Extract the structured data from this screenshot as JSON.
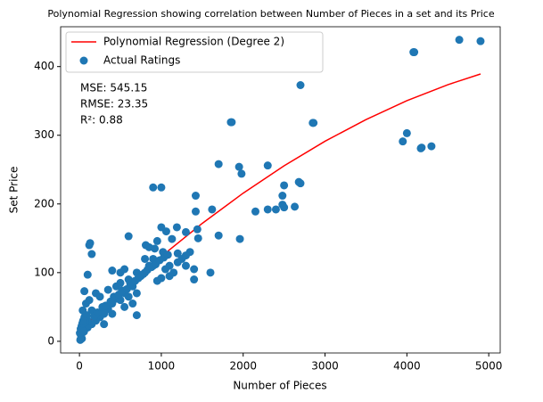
{
  "chart_data": {
    "type": "scatter",
    "title": "Polynomial Regression showing correlation between Number of Pieces in a set and its Price",
    "x_label": "Number of Pieces",
    "y_label": "Set Price",
    "annotations": [
      "MSE: 545.15",
      "RMSE: 23.35",
      "R²: 0.88"
    ],
    "legend": "upper left",
    "xlim": [
      -230,
      5140
    ],
    "ylim": [
      -17,
      458
    ],
    "xticks": [
      0,
      1000,
      2000,
      3000,
      4000,
      5000
    ],
    "yticks": [
      0,
      100,
      200,
      300,
      400
    ],
    "series": [
      {
        "name": "Polynomial Regression (Degree 2)",
        "type": "line",
        "color": "#ff0000",
        "x": [
          0,
          500,
          1000,
          1500,
          2000,
          2500,
          3000,
          3500,
          4000,
          4500,
          4900
        ],
        "values": [
          15,
          71.4,
          123.6,
          171.7,
          215.7,
          255.6,
          291.3,
          322.8,
          350.3,
          373.6,
          389.2
        ]
      },
      {
        "name": "Actual Ratings",
        "type": "scatter",
        "color": "#1f77b4",
        "x": [
          4640,
          4900,
          4080,
          4090,
          2700,
          1850,
          1860,
          2850,
          2860,
          3950,
          4000,
          4170,
          4180,
          4300,
          1700,
          1950,
          2300,
          1980,
          1000,
          900,
          2680,
          2700,
          2500,
          2480,
          2150,
          2300,
          2400,
          2480,
          2500,
          2630,
          1420,
          1420,
          1620,
          1440,
          1190,
          1300,
          1700,
          1960,
          1000,
          600,
          1060,
          810,
          850,
          920,
          950,
          1130,
          130,
          120,
          1450,
          1350,
          1300,
          1250,
          1200,
          1100,
          1050,
          1020,
          1400,
          950,
          1000,
          1100,
          900,
          150,
          100,
          60,
          300,
          700,
          400,
          500,
          550,
          600,
          700,
          800,
          750,
          650,
          550,
          450,
          400,
          350,
          300,
          250,
          200,
          150,
          100,
          50,
          20,
          30,
          10,
          60,
          40,
          80,
          120,
          200,
          250,
          350,
          500,
          600,
          450,
          550,
          650,
          700,
          300,
          400,
          150,
          100,
          500,
          800,
          850,
          900,
          1200,
          1150,
          1300,
          1400,
          1600,
          70,
          90,
          180,
          220,
          280,
          320,
          380,
          420,
          480,
          520,
          580,
          620,
          680,
          720,
          780,
          830,
          880,
          930,
          980,
          1030,
          1080,
          5,
          15,
          25,
          35,
          45,
          55
        ],
        "values": [
          439,
          437,
          421,
          421,
          373,
          319,
          319,
          318,
          318,
          291,
          303,
          281,
          282,
          284,
          258,
          254,
          256,
          244,
          224,
          224,
          232,
          230,
          227,
          212,
          189,
          192,
          192,
          199,
          195,
          196,
          212,
          189,
          192,
          163,
          166,
          159,
          154,
          149,
          166,
          153,
          160,
          140,
          137,
          135,
          146,
          149,
          143,
          140,
          150,
          130,
          125,
          120,
          115,
          110,
          105,
          130,
          105,
          88,
          92,
          95,
          110,
          127,
          97,
          73,
          40,
          38,
          103,
          100,
          105,
          90,
          100,
          120,
          95,
          80,
          70,
          62,
          55,
          47,
          43,
          35,
          30,
          25,
          20,
          15,
          8,
          4,
          2,
          35,
          45,
          55,
          60,
          70,
          65,
          75,
          60,
          65,
          80,
          50,
          55,
          70,
          25,
          40,
          45,
          30,
          85,
          100,
          110,
          120,
          128,
          100,
          110,
          90,
          100,
          28,
          38,
          36,
          42,
          50,
          52,
          58,
          65,
          68,
          74,
          76,
          84,
          88,
          92,
          98,
          104,
          108,
          112,
          118,
          122,
          126,
          12,
          18,
          22,
          26,
          30,
          14
        ]
      }
    ]
  }
}
